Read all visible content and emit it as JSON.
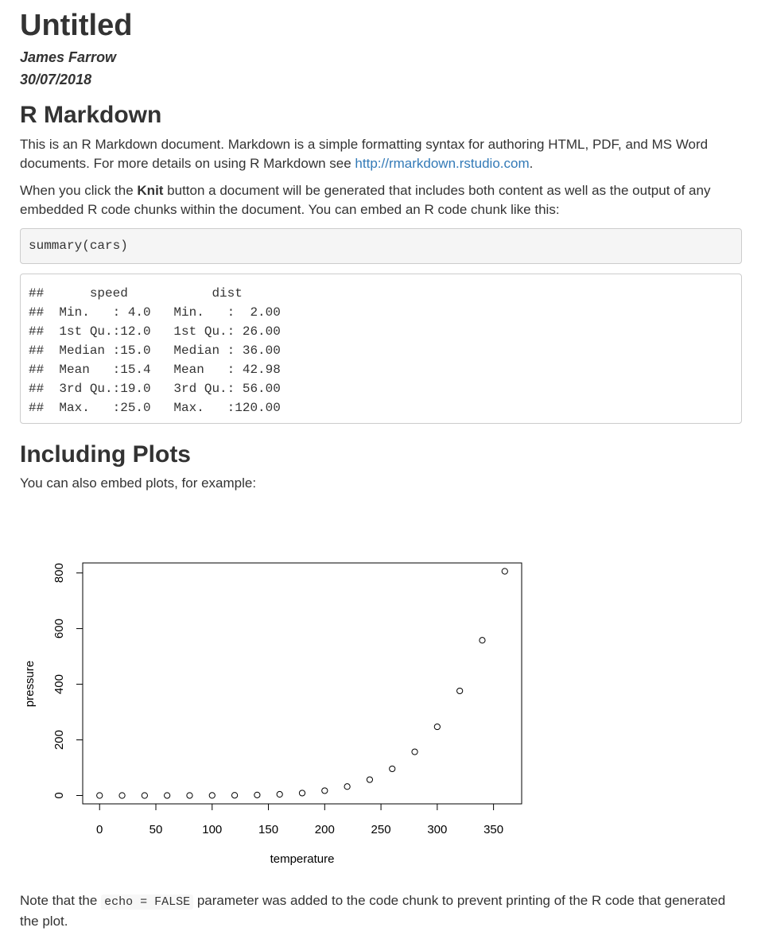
{
  "doc": {
    "title": "Untitled",
    "author": "James Farrow",
    "date": "30/07/2018"
  },
  "sections": {
    "r_markdown": {
      "heading": "R Markdown",
      "p1_text": "This is an R Markdown document. Markdown is a simple formatting syntax for authoring HTML, PDF, and MS Word documents. For more details on using R Markdown see ",
      "p1_link": "http://rmarkdown.rstudio.com",
      "p1_end": ".",
      "p2_start": "When you click the ",
      "p2_bold": "Knit",
      "p2_end": " button a document will be generated that includes both content as well as the output of any embedded R code chunks within the document. You can embed an R code chunk like this:",
      "code": "summary(cars)",
      "output_lines": [
        "##      speed           dist       ",
        "##  Min.   : 4.0   Min.   :  2.00  ",
        "##  1st Qu.:12.0   1st Qu.: 26.00  ",
        "##  Median :15.0   Median : 36.00  ",
        "##  Mean   :15.4   Mean   : 42.98  ",
        "##  3rd Qu.:19.0   3rd Qu.: 56.00  ",
        "##  Max.   :25.0   Max.   :120.00  "
      ]
    },
    "plots": {
      "heading": "Including Plots",
      "intro": "You can also embed plots, for example:",
      "note_start": "Note that the ",
      "note_code": "echo = FALSE",
      "note_end": " parameter was added to the code chunk to prevent printing of the R code that generated the plot."
    }
  },
  "chart_data": {
    "type": "scatter",
    "xlabel": "temperature",
    "ylabel": "pressure",
    "xlim": [
      -15,
      375
    ],
    "ylim": [
      -30,
      836
    ],
    "x_ticks": [
      0,
      50,
      100,
      150,
      200,
      250,
      300,
      350
    ],
    "y_ticks": [
      0,
      200,
      400,
      600,
      800
    ],
    "grid": false,
    "x": [
      0,
      20,
      40,
      60,
      80,
      100,
      120,
      140,
      160,
      180,
      200,
      220,
      240,
      260,
      280,
      300,
      320,
      340,
      360
    ],
    "y": [
      0.0002,
      0.0012,
      0.006,
      0.03,
      0.09,
      0.27,
      0.75,
      1.85,
      4.2,
      8.8,
      17.3,
      32.1,
      57,
      96,
      157,
      247,
      376,
      558,
      806
    ]
  }
}
